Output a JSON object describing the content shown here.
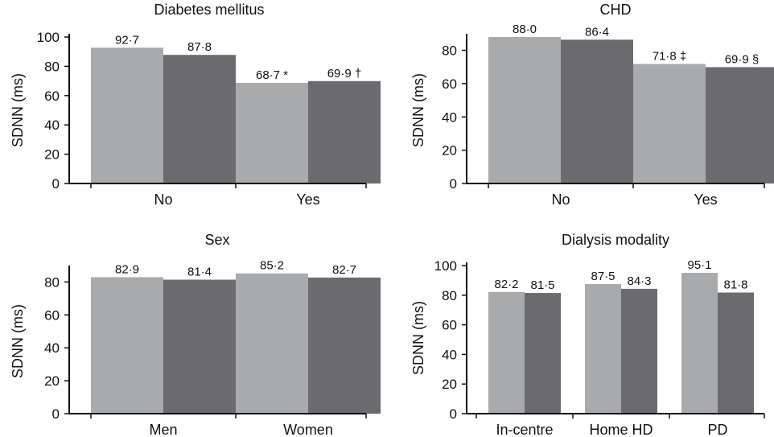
{
  "figure": {
    "background": "#ffffff"
  },
  "colors": {
    "series_light": "#a8aaac",
    "series_dark": "#6b6b6f",
    "axis": "#111111"
  },
  "chart_data": [
    {
      "type": "bar",
      "title": "Diabetes mellitus",
      "ylabel": "SDNN (ms)",
      "xlabel": "",
      "categories": [
        "No",
        "Yes"
      ],
      "series": [
        {
          "name": "light",
          "values": [
            92.7,
            68.7
          ]
        },
        {
          "name": "dark",
          "values": [
            87.8,
            69.9
          ]
        }
      ],
      "labels": [
        [
          "92·7",
          "68·7 *"
        ],
        [
          "87·8",
          "69·9 †"
        ]
      ],
      "ylim": [
        0,
        100
      ],
      "yticks": [
        0,
        20,
        40,
        60,
        80,
        100
      ],
      "grid": false
    },
    {
      "type": "bar",
      "title": "CHD",
      "ylabel": "SDNN (ms)",
      "xlabel": "",
      "categories": [
        "No",
        "Yes"
      ],
      "series": [
        {
          "name": "light",
          "values": [
            88.0,
            71.8
          ]
        },
        {
          "name": "dark",
          "values": [
            86.4,
            69.9
          ]
        }
      ],
      "labels": [
        [
          "88·0",
          "71·8 ‡"
        ],
        [
          "86·4",
          "69·9 §"
        ]
      ],
      "ylim": [
        0,
        88
      ],
      "yticks": [
        0,
        20,
        40,
        60,
        80
      ],
      "grid": false
    },
    {
      "type": "bar",
      "title": "Sex",
      "ylabel": "SDNN (ms)",
      "xlabel": "",
      "categories": [
        "Men",
        "Women"
      ],
      "series": [
        {
          "name": "light",
          "values": [
            82.9,
            85.2
          ]
        },
        {
          "name": "dark",
          "values": [
            81.4,
            82.7
          ]
        }
      ],
      "labels": [
        [
          "82·9",
          "85·2"
        ],
        [
          "81·4",
          "82·7"
        ]
      ],
      "ylim": [
        0,
        88
      ],
      "yticks": [
        0,
        20,
        40,
        60,
        80
      ],
      "grid": false
    },
    {
      "type": "bar",
      "title": "Dialysis modality",
      "ylabel": "SDNN (ms)",
      "xlabel": "",
      "categories": [
        "In-centre",
        "Home HD",
        "PD"
      ],
      "series": [
        {
          "name": "light",
          "values": [
            82.2,
            87.5,
            95.1
          ]
        },
        {
          "name": "dark",
          "values": [
            81.5,
            84.3,
            81.8
          ]
        }
      ],
      "labels": [
        [
          "82·2",
          "87·5",
          "95·1"
        ],
        [
          "81·5",
          "84·3",
          "81·8"
        ]
      ],
      "ylim": [
        0,
        100
      ],
      "yticks": [
        0,
        20,
        40,
        60,
        80,
        100
      ],
      "grid": false
    }
  ]
}
